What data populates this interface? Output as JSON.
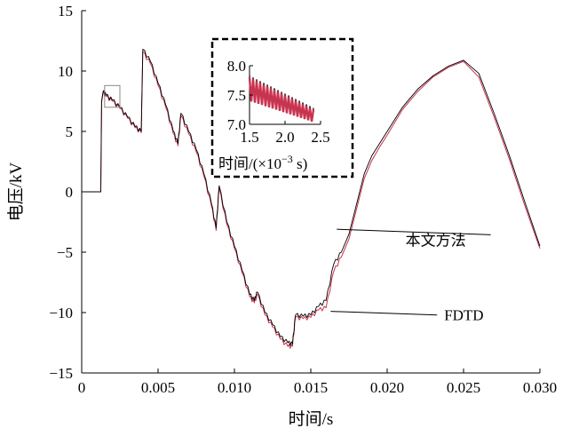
{
  "chart_data": {
    "type": "line",
    "xlabel": "时间/s",
    "ylabel": "电压/kV",
    "xlim": [
      0,
      0.03
    ],
    "ylim": [
      -15,
      15
    ],
    "x_ticks": [
      "0",
      "0.005",
      "0.010",
      "0.015",
      "0.020",
      "0.025",
      "0.030"
    ],
    "y_ticks": [
      "15",
      "10",
      "5",
      "0",
      "−5",
      "−10",
      "−15"
    ],
    "grid": false,
    "colors": {
      "method": "#000000",
      "fdtd": "#c8334f"
    },
    "series": [
      {
        "name": "本文方法",
        "x": [
          0,
          0.00125,
          0.0013,
          0.0014,
          0.0016,
          0.002,
          0.0025,
          0.003,
          0.0035,
          0.0039,
          0.004,
          0.0045,
          0.005,
          0.0055,
          0.006,
          0.0063,
          0.0065,
          0.007,
          0.0075,
          0.008,
          0.0085,
          0.0088,
          0.009,
          0.0095,
          0.01,
          0.0105,
          0.011,
          0.0113,
          0.0115,
          0.012,
          0.0125,
          0.013,
          0.0135,
          0.0138,
          0.014,
          0.0145,
          0.015,
          0.0155,
          0.016,
          0.0165,
          0.017,
          0.0175,
          0.018,
          0.0185,
          0.019,
          0.0195,
          0.02,
          0.021,
          0.022,
          0.023,
          0.024,
          0.025,
          0.026,
          0.027,
          0.028,
          0.029,
          0.03
        ],
        "y": [
          0,
          0,
          7.5,
          8.3,
          8.0,
          7.6,
          7.0,
          6.2,
          5.4,
          5.0,
          11.8,
          10.8,
          9.0,
          7.2,
          5.0,
          4.0,
          6.5,
          5.0,
          3.5,
          1.5,
          -1.0,
          -3.0,
          0.5,
          -2.5,
          -4.5,
          -6.5,
          -8.5,
          -9.0,
          -8.3,
          -10.0,
          -11.0,
          -12.0,
          -12.5,
          -12.6,
          -10.2,
          -10.3,
          -10.2,
          -9.5,
          -9.0,
          -6.0,
          -5.0,
          -3.5,
          -1.0,
          1.5,
          3.0,
          4.0,
          5.0,
          7.0,
          8.5,
          9.6,
          10.4,
          10.9,
          9.8,
          6.5,
          3.0,
          -0.8,
          -4.5
        ]
      },
      {
        "name": "FDTD",
        "x": [
          0,
          0.00125,
          0.0013,
          0.0014,
          0.0016,
          0.002,
          0.0025,
          0.003,
          0.0035,
          0.0039,
          0.004,
          0.0045,
          0.005,
          0.0055,
          0.006,
          0.0063,
          0.0065,
          0.007,
          0.0075,
          0.008,
          0.0085,
          0.0088,
          0.009,
          0.0095,
          0.01,
          0.0105,
          0.011,
          0.0113,
          0.0115,
          0.012,
          0.0125,
          0.013,
          0.0135,
          0.0138,
          0.014,
          0.0145,
          0.015,
          0.0155,
          0.016,
          0.0165,
          0.017,
          0.0175,
          0.018,
          0.0185,
          0.019,
          0.0195,
          0.02,
          0.021,
          0.022,
          0.023,
          0.024,
          0.025,
          0.026,
          0.027,
          0.028,
          0.029,
          0.03
        ],
        "y": [
          0,
          0,
          7.4,
          8.2,
          7.9,
          7.5,
          6.9,
          6.1,
          5.3,
          4.9,
          11.6,
          10.6,
          8.8,
          7.0,
          4.8,
          3.8,
          6.3,
          4.8,
          3.3,
          1.3,
          -1.2,
          -3.2,
          0.3,
          -2.7,
          -4.7,
          -6.7,
          -8.7,
          -9.2,
          -8.5,
          -10.2,
          -11.2,
          -12.2,
          -12.8,
          -12.8,
          -10.4,
          -10.5,
          -10.4,
          -9.8,
          -9.6,
          -6.6,
          -5.4,
          -3.9,
          -1.4,
          1.1,
          2.6,
          3.7,
          4.7,
          6.8,
          8.3,
          9.5,
          10.3,
          10.8,
          9.5,
          6.2,
          2.7,
          -1.1,
          -4.7
        ]
      }
    ],
    "annotations": [
      {
        "text": "本文方法",
        "x": 0.0212,
        "y": -4.0,
        "arrow_to_x": 0.0167,
        "arrow_to_y": -3.1
      },
      {
        "text": "FDTD",
        "x": 0.0235,
        "y": -10.2,
        "arrow_to_x": 0.0163,
        "arrow_to_y": -9.9
      }
    ],
    "zoom_box": {
      "x": [
        0.0015,
        0.0025
      ],
      "y": [
        7.0,
        8.8
      ]
    },
    "inset": {
      "xlim": [
        1.5,
        2.5
      ],
      "ylim": [
        7.0,
        8.0
      ],
      "x_ticks": [
        "1.5",
        "2.0",
        "2.5"
      ],
      "y_ticks": [
        "8.0",
        "7.5",
        "7.0"
      ],
      "xlabel_main": "时间/(×10",
      "xlabel_exp": "−3",
      "xlabel_unit": " s)",
      "border_style": "dashed"
    }
  }
}
